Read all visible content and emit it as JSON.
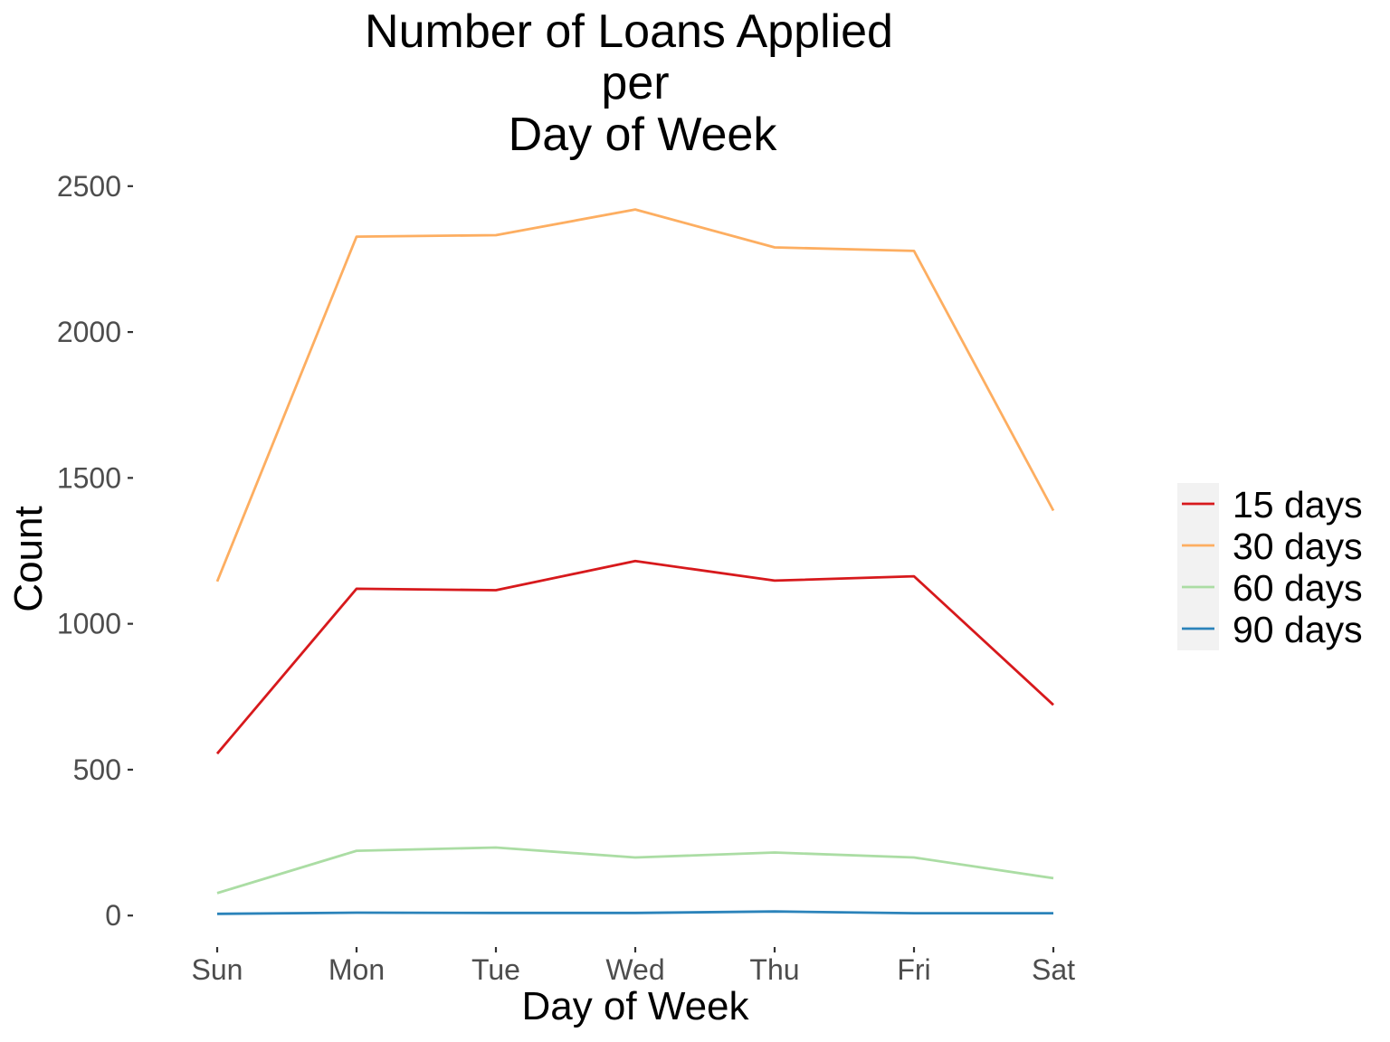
{
  "chart_data": {
    "type": "line",
    "title": [
      "Number of Loans Applied",
      "per",
      "Day of Week"
    ],
    "xlabel": "Day of Week",
    "ylabel": "Count",
    "categories": [
      "Sun",
      "Mon",
      "Tue",
      "Wed",
      "Thu",
      "Fri",
      "Sat"
    ],
    "ylim": [
      -80,
      2580
    ],
    "yticks": [
      0,
      500,
      1000,
      1500,
      2000,
      2500
    ],
    "grid": false,
    "legend_position": "right",
    "series": [
      {
        "name": "15 days",
        "color": "#D7191C",
        "values": [
          555,
          1120,
          1115,
          1215,
          1148,
          1163,
          722
        ]
      },
      {
        "name": "30 days",
        "color": "#FDAE61",
        "values": [
          1145,
          2327,
          2332,
          2420,
          2290,
          2278,
          1388
        ]
      },
      {
        "name": "60 days",
        "color": "#ABDDA4",
        "values": [
          77,
          222,
          233,
          199,
          216,
          199,
          128
        ]
      },
      {
        "name": "90 days",
        "color": "#2B83BA",
        "values": [
          6,
          10,
          9,
          9,
          14,
          8,
          8
        ]
      }
    ]
  }
}
